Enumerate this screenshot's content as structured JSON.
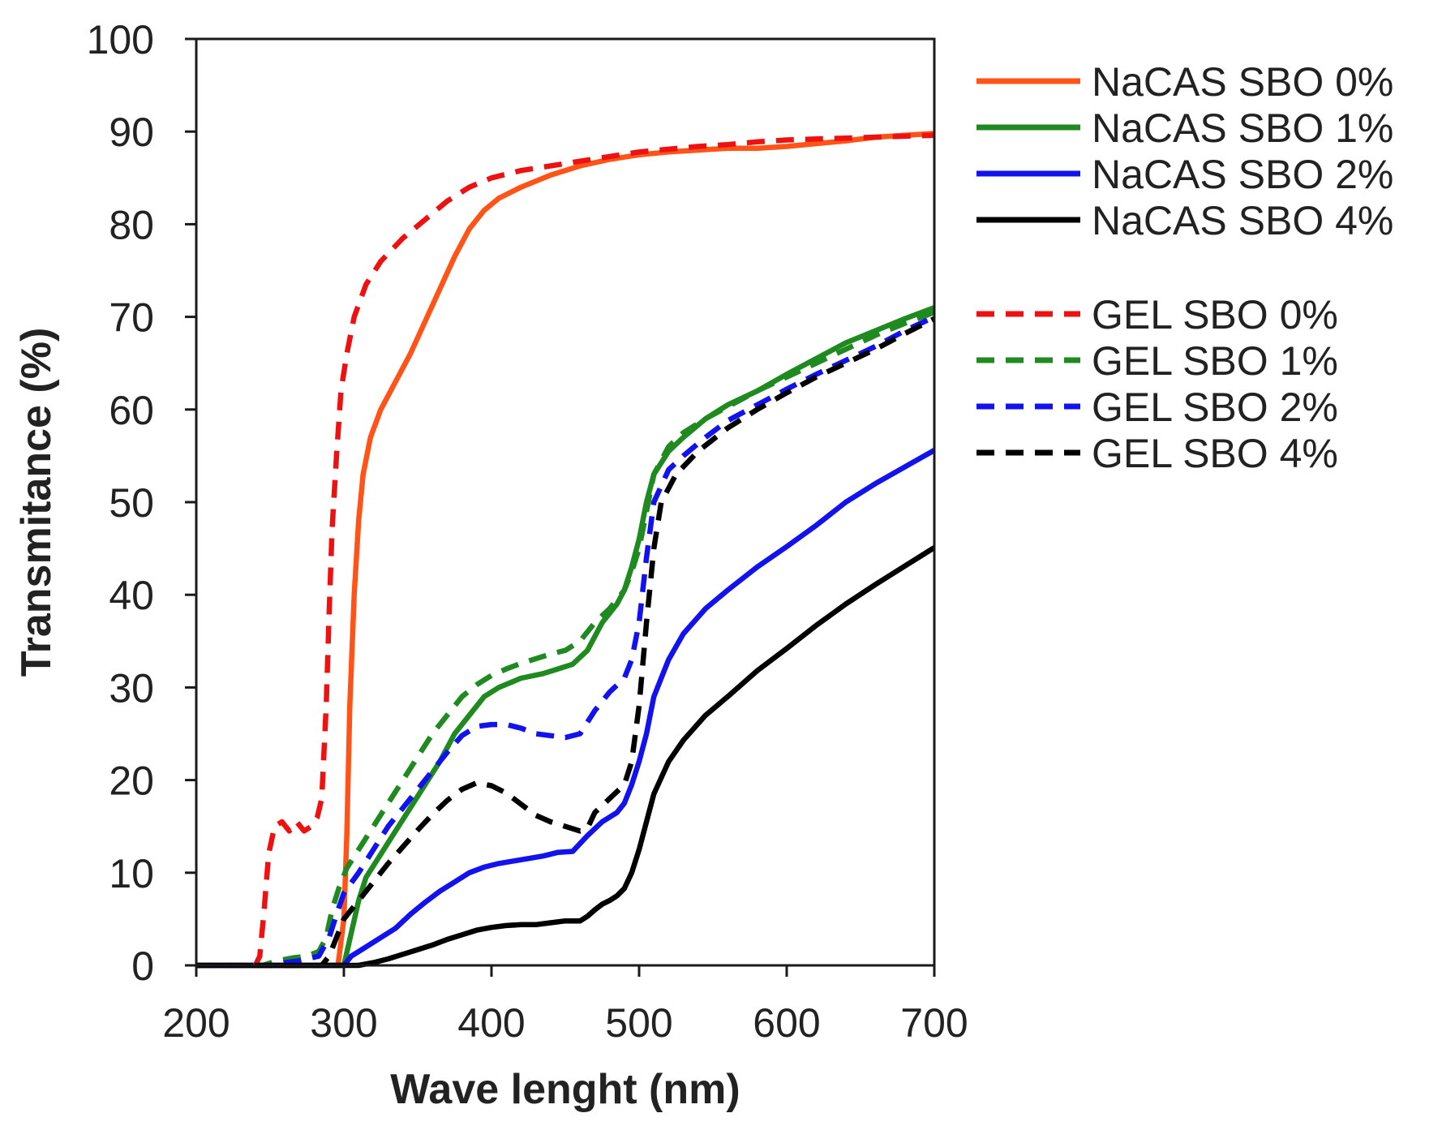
{
  "chart_data": {
    "type": "line",
    "title": "",
    "xlabel": "Wave lenght (nm)",
    "ylabel": "Transmitance (%)",
    "xlim": [
      200,
      700
    ],
    "ylim": [
      0,
      100
    ],
    "xticks": [
      "200",
      "300",
      "400",
      "500",
      "600",
      "700"
    ],
    "yticks": [
      "0",
      "10",
      "20",
      "30",
      "40",
      "50",
      "60",
      "70",
      "80",
      "90",
      "100"
    ],
    "grid": false,
    "legend_position": "right",
    "series": [
      {
        "name": "NaCAS SBO 0%",
        "color": "#ff5317",
        "dash": "solid",
        "points": [
          [
            200,
            0
          ],
          [
            290,
            0
          ],
          [
            296,
            0
          ],
          [
            300,
            5
          ],
          [
            302,
            14
          ],
          [
            304,
            28
          ],
          [
            307,
            40
          ],
          [
            310,
            48
          ],
          [
            313,
            53
          ],
          [
            318,
            57
          ],
          [
            325,
            60
          ],
          [
            335,
            63
          ],
          [
            345,
            66
          ],
          [
            355,
            69.5
          ],
          [
            365,
            73
          ],
          [
            375,
            76.5
          ],
          [
            385,
            79.5
          ],
          [
            395,
            81.5
          ],
          [
            405,
            82.8
          ],
          [
            420,
            84
          ],
          [
            440,
            85.3
          ],
          [
            460,
            86.3
          ],
          [
            480,
            87
          ],
          [
            500,
            87.5
          ],
          [
            520,
            87.8
          ],
          [
            540,
            88
          ],
          [
            560,
            88.2
          ],
          [
            580,
            88.2
          ],
          [
            600,
            88.4
          ],
          [
            620,
            88.7
          ],
          [
            640,
            89
          ],
          [
            660,
            89.4
          ],
          [
            680,
            89.6
          ],
          [
            700,
            89.8
          ]
        ]
      },
      {
        "name": "NaCAS SBO 1%",
        "color": "#1f8a1f",
        "dash": "solid",
        "points": [
          [
            200,
            0
          ],
          [
            295,
            0
          ],
          [
            300,
            0
          ],
          [
            305,
            3.5
          ],
          [
            310,
            7
          ],
          [
            315,
            9.5
          ],
          [
            325,
            12
          ],
          [
            335,
            14.5
          ],
          [
            345,
            17
          ],
          [
            355,
            19.5
          ],
          [
            365,
            22
          ],
          [
            375,
            25
          ],
          [
            385,
            27
          ],
          [
            395,
            29
          ],
          [
            405,
            30
          ],
          [
            420,
            31
          ],
          [
            435,
            31.5
          ],
          [
            445,
            32
          ],
          [
            455,
            32.5
          ],
          [
            465,
            34
          ],
          [
            475,
            37
          ],
          [
            485,
            39
          ],
          [
            490,
            40.5
          ],
          [
            495,
            43
          ],
          [
            500,
            46
          ],
          [
            505,
            50
          ],
          [
            510,
            53
          ],
          [
            520,
            55.5
          ],
          [
            530,
            57
          ],
          [
            545,
            59
          ],
          [
            560,
            60.5
          ],
          [
            580,
            62
          ],
          [
            600,
            63.8
          ],
          [
            620,
            65.5
          ],
          [
            640,
            67.2
          ],
          [
            660,
            68.5
          ],
          [
            680,
            69.8
          ],
          [
            700,
            71
          ]
        ]
      },
      {
        "name": "NaCAS SBO 2%",
        "color": "#1212ee",
        "dash": "solid",
        "points": [
          [
            200,
            0
          ],
          [
            300,
            0
          ],
          [
            305,
            1
          ],
          [
            315,
            2
          ],
          [
            325,
            3
          ],
          [
            335,
            4
          ],
          [
            345,
            5.5
          ],
          [
            355,
            6.8
          ],
          [
            365,
            8
          ],
          [
            375,
            9
          ],
          [
            385,
            10
          ],
          [
            395,
            10.6
          ],
          [
            405,
            11
          ],
          [
            420,
            11.4
          ],
          [
            435,
            11.8
          ],
          [
            445,
            12.2
          ],
          [
            455,
            12.3
          ],
          [
            465,
            14
          ],
          [
            475,
            15.5
          ],
          [
            485,
            16.5
          ],
          [
            490,
            17.5
          ],
          [
            495,
            19.5
          ],
          [
            500,
            22
          ],
          [
            505,
            25
          ],
          [
            510,
            29
          ],
          [
            520,
            33
          ],
          [
            530,
            35.8
          ],
          [
            545,
            38.5
          ],
          [
            560,
            40.5
          ],
          [
            580,
            43
          ],
          [
            600,
            45.2
          ],
          [
            620,
            47.5
          ],
          [
            640,
            50
          ],
          [
            660,
            52
          ],
          [
            680,
            53.8
          ],
          [
            700,
            55.6
          ]
        ]
      },
      {
        "name": "NaCAS SBO 4%",
        "color": "#000000",
        "dash": "solid",
        "points": [
          [
            200,
            0
          ],
          [
            310,
            0
          ],
          [
            320,
            0.3
          ],
          [
            330,
            0.7
          ],
          [
            340,
            1.2
          ],
          [
            350,
            1.7
          ],
          [
            360,
            2.2
          ],
          [
            370,
            2.8
          ],
          [
            380,
            3.3
          ],
          [
            390,
            3.8
          ],
          [
            400,
            4.1
          ],
          [
            410,
            4.3
          ],
          [
            420,
            4.4
          ],
          [
            430,
            4.4
          ],
          [
            440,
            4.6
          ],
          [
            450,
            4.8
          ],
          [
            460,
            4.8
          ],
          [
            465,
            5.3
          ],
          [
            470,
            6
          ],
          [
            475,
            6.6
          ],
          [
            480,
            7
          ],
          [
            485,
            7.5
          ],
          [
            490,
            8.3
          ],
          [
            495,
            10
          ],
          [
            500,
            12.5
          ],
          [
            505,
            15.5
          ],
          [
            510,
            18.5
          ],
          [
            520,
            22
          ],
          [
            530,
            24.3
          ],
          [
            545,
            27
          ],
          [
            560,
            29
          ],
          [
            580,
            31.8
          ],
          [
            600,
            34.2
          ],
          [
            620,
            36.7
          ],
          [
            640,
            39
          ],
          [
            660,
            41.1
          ],
          [
            680,
            43.1
          ],
          [
            700,
            45.1
          ]
        ]
      },
      {
        "name": "GEL SBO 0%",
        "color": "#ee1111",
        "dash": "dashed",
        "points": [
          [
            200,
            0
          ],
          [
            240,
            0
          ],
          [
            243,
            1
          ],
          [
            246,
            6
          ],
          [
            249,
            12
          ],
          [
            253,
            15
          ],
          [
            258,
            15.5
          ],
          [
            263,
            14.5
          ],
          [
            268,
            15.5
          ],
          [
            273,
            14.5
          ],
          [
            278,
            15
          ],
          [
            282,
            16
          ],
          [
            285,
            18
          ],
          [
            288,
            28
          ],
          [
            290,
            38
          ],
          [
            292,
            47
          ],
          [
            295,
            55
          ],
          [
            298,
            62
          ],
          [
            302,
            66
          ],
          [
            307,
            70
          ],
          [
            315,
            73.5
          ],
          [
            325,
            76
          ],
          [
            340,
            78.5
          ],
          [
            355,
            80.5
          ],
          [
            370,
            82.5
          ],
          [
            385,
            84
          ],
          [
            400,
            85
          ],
          [
            420,
            85.8
          ],
          [
            440,
            86.3
          ],
          [
            460,
            86.8
          ],
          [
            480,
            87.3
          ],
          [
            500,
            87.8
          ],
          [
            520,
            88.1
          ],
          [
            540,
            88.4
          ],
          [
            560,
            88.6
          ],
          [
            580,
            88.9
          ],
          [
            600,
            89.1
          ],
          [
            620,
            89.2
          ],
          [
            640,
            89.3
          ],
          [
            660,
            89.4
          ],
          [
            680,
            89.5
          ],
          [
            700,
            89.6
          ]
        ]
      },
      {
        "name": "GEL SBO 1%",
        "color": "#1f8a1f",
        "dash": "dashed",
        "points": [
          [
            200,
            0
          ],
          [
            245,
            0
          ],
          [
            255,
            0.5
          ],
          [
            265,
            0.8
          ],
          [
            275,
            1
          ],
          [
            283,
            1.5
          ],
          [
            288,
            3
          ],
          [
            292,
            6
          ],
          [
            297,
            8.5
          ],
          [
            302,
            10.5
          ],
          [
            310,
            12.5
          ],
          [
            320,
            15
          ],
          [
            330,
            17.5
          ],
          [
            340,
            20
          ],
          [
            350,
            22.5
          ],
          [
            360,
            25
          ],
          [
            370,
            27
          ],
          [
            380,
            29
          ],
          [
            390,
            30.3
          ],
          [
            400,
            31.3
          ],
          [
            410,
            32
          ],
          [
            420,
            32.6
          ],
          [
            430,
            33.1
          ],
          [
            440,
            33.6
          ],
          [
            450,
            34
          ],
          [
            460,
            35
          ],
          [
            470,
            37
          ],
          [
            480,
            38.5
          ],
          [
            490,
            40.5
          ],
          [
            495,
            42.5
          ],
          [
            500,
            45
          ],
          [
            505,
            49
          ],
          [
            510,
            53
          ],
          [
            520,
            56
          ],
          [
            530,
            57.5
          ],
          [
            545,
            59
          ],
          [
            560,
            60.3
          ],
          [
            580,
            62
          ],
          [
            600,
            63.5
          ],
          [
            620,
            65
          ],
          [
            640,
            66.5
          ],
          [
            660,
            68
          ],
          [
            680,
            69.3
          ],
          [
            700,
            70.5
          ]
        ]
      },
      {
        "name": "GEL SBO 2%",
        "color": "#1212ee",
        "dash": "dashed",
        "points": [
          [
            200,
            0
          ],
          [
            250,
            0
          ],
          [
            260,
            0.3
          ],
          [
            270,
            0.5
          ],
          [
            283,
            1
          ],
          [
            290,
            3
          ],
          [
            295,
            5.5
          ],
          [
            300,
            7.8
          ],
          [
            310,
            10
          ],
          [
            320,
            12.5
          ],
          [
            330,
            15
          ],
          [
            340,
            17
          ],
          [
            350,
            19
          ],
          [
            360,
            21
          ],
          [
            370,
            23
          ],
          [
            380,
            24.8
          ],
          [
            390,
            25.8
          ],
          [
            400,
            26
          ],
          [
            410,
            26
          ],
          [
            420,
            25.6
          ],
          [
            430,
            25
          ],
          [
            440,
            24.8
          ],
          [
            450,
            24.6
          ],
          [
            460,
            25
          ],
          [
            470,
            27.5
          ],
          [
            480,
            29.5
          ],
          [
            490,
            31
          ],
          [
            495,
            33
          ],
          [
            500,
            37
          ],
          [
            505,
            44
          ],
          [
            510,
            50
          ],
          [
            520,
            53.5
          ],
          [
            530,
            55
          ],
          [
            545,
            57
          ],
          [
            560,
            58.8
          ],
          [
            580,
            60.5
          ],
          [
            600,
            62.2
          ],
          [
            620,
            63.8
          ],
          [
            640,
            65.3
          ],
          [
            660,
            66.8
          ],
          [
            680,
            68.5
          ],
          [
            700,
            70
          ]
        ]
      },
      {
        "name": "GEL SBO 4%",
        "color": "#000000",
        "dash": "dashed",
        "points": [
          [
            200,
            0
          ],
          [
            285,
            0
          ],
          [
            290,
            1
          ],
          [
            295,
            3
          ],
          [
            300,
            5
          ],
          [
            310,
            7
          ],
          [
            320,
            9
          ],
          [
            330,
            11
          ],
          [
            340,
            12.8
          ],
          [
            350,
            14.6
          ],
          [
            360,
            16.3
          ],
          [
            370,
            17.8
          ],
          [
            380,
            19
          ],
          [
            390,
            19.7
          ],
          [
            400,
            19.4
          ],
          [
            410,
            18.6
          ],
          [
            420,
            17.4
          ],
          [
            430,
            16.2
          ],
          [
            440,
            15.5
          ],
          [
            450,
            15
          ],
          [
            460,
            14.5
          ],
          [
            465,
            14.8
          ],
          [
            470,
            16.5
          ],
          [
            480,
            18
          ],
          [
            490,
            19.5
          ],
          [
            495,
            22
          ],
          [
            500,
            28
          ],
          [
            505,
            37
          ],
          [
            510,
            45
          ],
          [
            515,
            50
          ],
          [
            525,
            53
          ],
          [
            540,
            55.5
          ],
          [
            560,
            58
          ],
          [
            580,
            60
          ],
          [
            600,
            61.8
          ],
          [
            620,
            63.5
          ],
          [
            640,
            65
          ],
          [
            660,
            66.5
          ],
          [
            680,
            68.2
          ],
          [
            700,
            69.8
          ]
        ]
      }
    ]
  }
}
